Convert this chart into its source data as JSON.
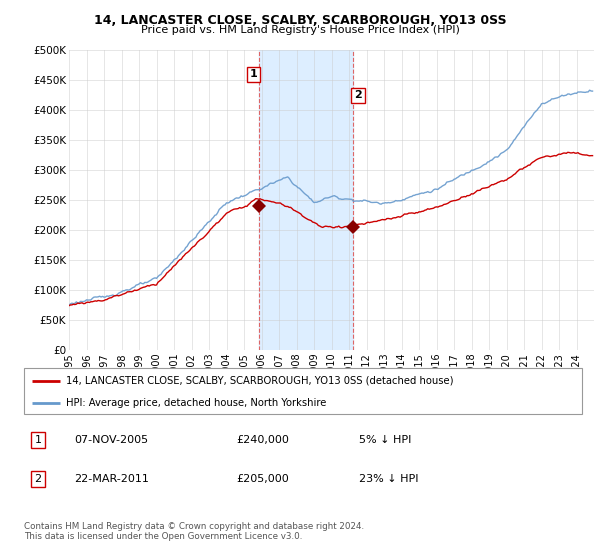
{
  "title": "14, LANCASTER CLOSE, SCALBY, SCARBOROUGH, YO13 0SS",
  "subtitle": "Price paid vs. HM Land Registry's House Price Index (HPI)",
  "ylabel_ticks": [
    "£0",
    "£50K",
    "£100K",
    "£150K",
    "£200K",
    "£250K",
    "£300K",
    "£350K",
    "£400K",
    "£450K",
    "£500K"
  ],
  "ytick_values": [
    0,
    50000,
    100000,
    150000,
    200000,
    250000,
    300000,
    350000,
    400000,
    450000,
    500000
  ],
  "ylim": [
    0,
    500000
  ],
  "xlim_start": 1995.0,
  "xlim_end": 2025.0,
  "hpi_color": "#6699cc",
  "price_color": "#cc0000",
  "shading_color": "#ddeeff",
  "transaction1_x": 2005.85,
  "transaction1_y": 240000,
  "transaction2_x": 2011.22,
  "transaction2_y": 205000,
  "legend_label1": "14, LANCASTER CLOSE, SCALBY, SCARBOROUGH, YO13 0SS (detached house)",
  "legend_label2": "HPI: Average price, detached house, North Yorkshire",
  "table_row1": [
    "1",
    "07-NOV-2005",
    "£240,000",
    "5% ↓ HPI"
  ],
  "table_row2": [
    "2",
    "22-MAR-2011",
    "£205,000",
    "23% ↓ HPI"
  ],
  "footnote": "Contains HM Land Registry data © Crown copyright and database right 2024.\nThis data is licensed under the Open Government Licence v3.0.",
  "background_color": "#ffffff",
  "grid_color": "#cccccc"
}
